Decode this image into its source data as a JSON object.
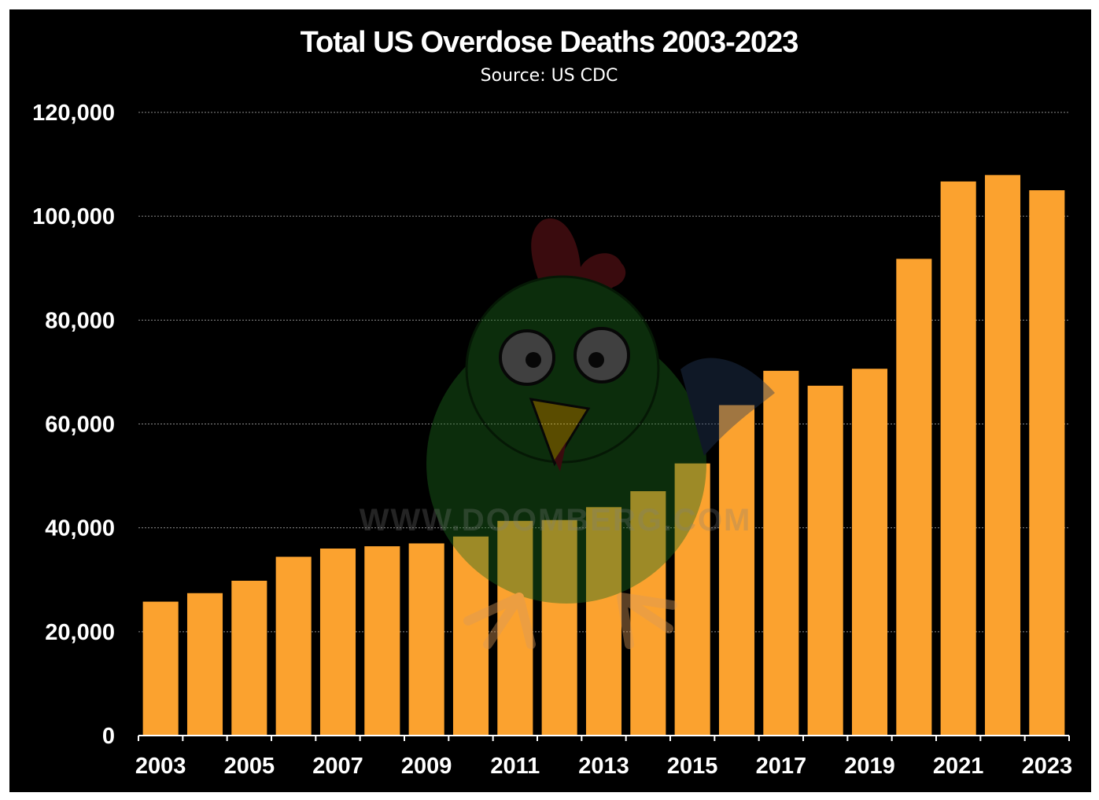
{
  "chart_data": {
    "type": "bar",
    "title": "Total US Overdose Deaths 2003-2023",
    "subtitle": "Source: US CDC",
    "xlabel": "",
    "ylabel": "",
    "categories": [
      "2003",
      "2004",
      "2005",
      "2006",
      "2007",
      "2008",
      "2009",
      "2010",
      "2011",
      "2012",
      "2013",
      "2014",
      "2015",
      "2016",
      "2017",
      "2018",
      "2019",
      "2020",
      "2021",
      "2022",
      "2023"
    ],
    "values": [
      25785,
      27424,
      29813,
      34425,
      36010,
      36450,
      37004,
      38329,
      41340,
      41502,
      43982,
      47055,
      52404,
      63632,
      70237,
      67367,
      70630,
      91799,
      106699,
      107941,
      105007
    ],
    "ylim": [
      0,
      120000
    ],
    "yticks": [
      0,
      20000,
      40000,
      60000,
      80000,
      100000,
      120000
    ],
    "ytick_labels": [
      "0",
      "20,000",
      "40,000",
      "60,000",
      "80,000",
      "100,000",
      "120,000"
    ],
    "xtick_labels": [
      "2003",
      "2005",
      "2007",
      "2009",
      "2011",
      "2013",
      "2015",
      "2017",
      "2019",
      "2021",
      "2023"
    ],
    "grid": true,
    "bar_color": "#FBA22F",
    "background_color": "#000000"
  },
  "watermark": {
    "text": "WWW.DOOMBERG.COM",
    "icon": "chicken-mascot-icon"
  }
}
